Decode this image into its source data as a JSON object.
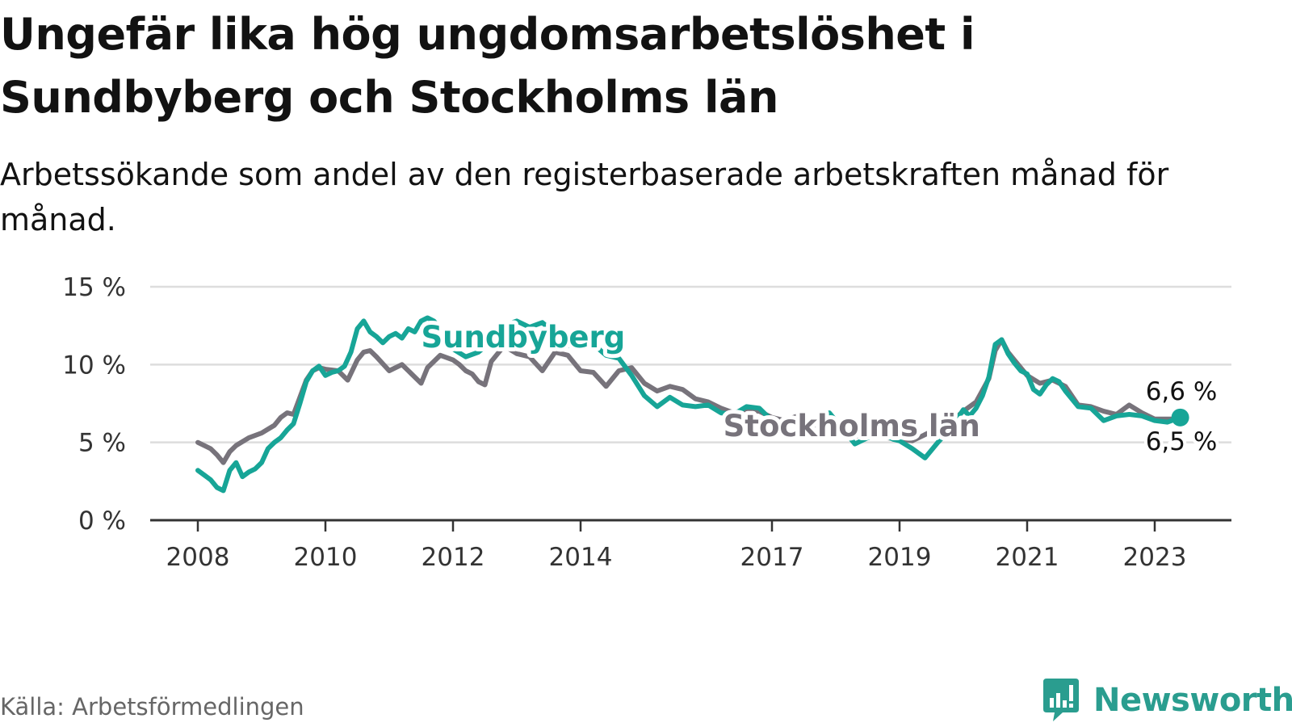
{
  "title": "Ungefär lika hög ungdomsarbetslöshet i Sundbyberg och Stockholms län",
  "subtitle": "Arbetssökande som andel av den registerbaserade arbetskraften månad för månad.",
  "source": "Källa: Arbetsförmedlingen",
  "brand": "Newsworthy",
  "colors": {
    "sundbyberg": "#17a597",
    "stockholm": "#77737b",
    "grid": "#dddddd",
    "axis": "#333333",
    "brand": "#2a9d8f"
  },
  "chart_data": {
    "type": "line",
    "title": "Ungefär lika hög ungdomsarbetslöshet i Sundbyberg och Stockholms län",
    "xlabel": "",
    "ylabel": "",
    "ylim": [
      0,
      15
    ],
    "y_ticks": [
      0,
      5,
      10,
      15
    ],
    "y_tick_labels": [
      "0 %",
      "5 %",
      "10 %",
      "15 %"
    ],
    "x_range": [
      2007.4,
      2025.0
    ],
    "x_ticks": [
      2008,
      2010,
      2012,
      2014,
      2017,
      2019,
      2021,
      2023
    ],
    "x_tick_labels": [
      "2008",
      "2010",
      "2012",
      "2014",
      "2017",
      "2019",
      "2021",
      "2023"
    ],
    "grid": true,
    "series": [
      {
        "name": "Sundbyberg",
        "label": "Sundbyberg",
        "color": "#17a597",
        "end_label": "6,6 %",
        "x": [
          2008.0,
          2008.2,
          2008.3,
          2008.4,
          2008.5,
          2008.6,
          2008.7,
          2008.8,
          2008.9,
          2009.0,
          2009.1,
          2009.2,
          2009.3,
          2009.4,
          2009.5,
          2009.6,
          2009.7,
          2009.8,
          2009.9,
          2010.0,
          2010.1,
          2010.2,
          2010.3,
          2010.4,
          2010.5,
          2010.6,
          2010.7,
          2010.8,
          2010.9,
          2011.0,
          2011.1,
          2011.2,
          2011.3,
          2011.4,
          2011.5,
          2011.6,
          2011.7,
          2011.8,
          2012.0,
          2012.2,
          2012.4,
          2012.6,
          2012.8,
          2013.0,
          2013.2,
          2013.4,
          2013.6,
          2013.8,
          2014.0,
          2014.2,
          2014.4,
          2014.6,
          2014.8,
          2015.0,
          2015.2,
          2015.4,
          2015.6,
          2015.8,
          2016.0,
          2016.2,
          2016.4,
          2016.6,
          2016.8,
          2016.9,
          2017.1,
          2017.3,
          2017.5,
          2017.7,
          2017.9,
          2018.1,
          2018.3,
          2018.5,
          2018.7,
          2018.9,
          2019.0,
          2019.2,
          2019.4,
          2019.6,
          2019.8,
          2020.0,
          2020.1,
          2020.2,
          2020.3,
          2020.4,
          2020.5,
          2020.6,
          2020.7,
          2020.8,
          2020.9,
          2021.0,
          2021.1,
          2021.2,
          2021.3,
          2021.4,
          2021.5,
          2021.6,
          2021.8,
          2022.0,
          2022.2,
          2022.4,
          2022.6,
          2022.8,
          2023.0,
          2023.2,
          2023.4
        ],
        "y": [
          3.2,
          2.6,
          2.1,
          1.9,
          3.2,
          3.7,
          2.8,
          3.1,
          3.3,
          3.7,
          4.6,
          5.0,
          5.3,
          5.8,
          6.2,
          7.5,
          8.9,
          9.6,
          9.9,
          9.3,
          9.5,
          9.6,
          9.9,
          10.8,
          12.3,
          12.8,
          12.1,
          11.8,
          11.4,
          11.8,
          12.0,
          11.7,
          12.3,
          12.1,
          12.8,
          13.0,
          12.8,
          12.3,
          11.0,
          10.5,
          10.8,
          11.5,
          12.5,
          12.8,
          12.4,
          12.7,
          12.0,
          11.2,
          11.6,
          11.3,
          10.6,
          10.4,
          9.3,
          8.0,
          7.3,
          7.9,
          7.4,
          7.3,
          7.4,
          6.9,
          6.8,
          7.3,
          7.2,
          6.8,
          6.0,
          6.5,
          6.1,
          6.3,
          6.9,
          5.9,
          4.9,
          5.3,
          5.6,
          5.2,
          5.1,
          4.6,
          4.0,
          5.0,
          5.9,
          7.1,
          6.7,
          7.2,
          8.0,
          9.2,
          11.3,
          11.6,
          10.7,
          10.1,
          9.6,
          9.4,
          8.4,
          8.1,
          8.7,
          9.1,
          8.9,
          8.3,
          7.3,
          7.2,
          6.4,
          6.7,
          6.8,
          6.7,
          6.4,
          6.3,
          6.6
        ]
      },
      {
        "name": "Stockholms län",
        "label": "Stockholms län",
        "color": "#77737b",
        "end_label": "6,5 %",
        "x": [
          2008.0,
          2008.2,
          2008.3,
          2008.4,
          2008.5,
          2008.6,
          2008.8,
          2009.0,
          2009.2,
          2009.3,
          2009.4,
          2009.5,
          2009.6,
          2009.7,
          2009.8,
          2009.9,
          2010.0,
          2010.2,
          2010.35,
          2010.5,
          2010.6,
          2010.7,
          2010.8,
          2011.0,
          2011.2,
          2011.3,
          2011.5,
          2011.6,
          2011.8,
          2012.0,
          2012.1,
          2012.2,
          2012.3,
          2012.4,
          2012.5,
          2012.6,
          2012.8,
          2013.0,
          2013.2,
          2013.4,
          2013.6,
          2013.8,
          2014.0,
          2014.2,
          2014.4,
          2014.6,
          2014.8,
          2015.0,
          2015.2,
          2015.4,
          2015.6,
          2015.8,
          2016.0,
          2016.2,
          2016.4,
          2016.6,
          2016.8,
          2017.0,
          2017.2,
          2017.4,
          2017.6,
          2017.8,
          2018.0,
          2018.2,
          2018.4,
          2018.6,
          2018.8,
          2019.0,
          2019.2,
          2019.4,
          2019.6,
          2019.8,
          2020.0,
          2020.2,
          2020.4,
          2020.5,
          2020.6,
          2020.7,
          2020.8,
          2021.0,
          2021.2,
          2021.4,
          2021.6,
          2021.8,
          2022.0,
          2022.2,
          2022.4,
          2022.6,
          2022.8,
          2023.0,
          2023.2,
          2023.4
        ],
        "y": [
          5.0,
          4.6,
          4.2,
          3.7,
          4.4,
          4.8,
          5.3,
          5.6,
          6.1,
          6.6,
          6.9,
          6.8,
          7.9,
          9.0,
          9.6,
          9.8,
          9.7,
          9.6,
          9.0,
          10.3,
          10.8,
          10.9,
          10.5,
          9.6,
          10.0,
          9.6,
          8.8,
          9.8,
          10.6,
          10.3,
          10.0,
          9.6,
          9.4,
          8.9,
          8.7,
          10.2,
          11.2,
          10.7,
          10.5,
          9.6,
          10.8,
          10.6,
          9.6,
          9.5,
          8.6,
          9.6,
          9.8,
          8.8,
          8.3,
          8.6,
          8.4,
          7.8,
          7.6,
          7.2,
          6.9,
          7.1,
          7.0,
          6.6,
          6.4,
          6.7,
          6.2,
          6.0,
          5.7,
          5.5,
          5.4,
          5.8,
          5.3,
          5.2,
          5.1,
          5.5,
          5.9,
          6.3,
          7.0,
          7.6,
          9.1,
          10.9,
          11.6,
          10.8,
          10.3,
          9.3,
          8.8,
          9.0,
          8.6,
          7.4,
          7.3,
          7.0,
          6.8,
          7.4,
          6.9,
          6.5,
          6.5,
          6.5
        ]
      }
    ],
    "label_positions": {
      "Sundbyberg": "upper-middle",
      "Stockholms län": "center-right"
    }
  }
}
